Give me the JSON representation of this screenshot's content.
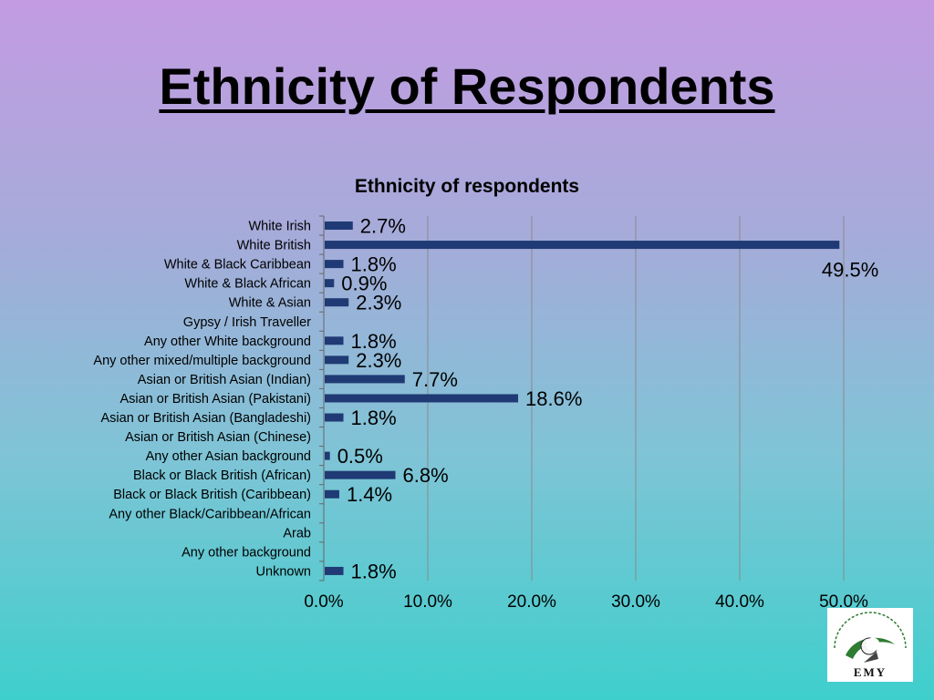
{
  "slide": {
    "title": "Ethnicity of Respondents"
  },
  "colors": {
    "bar": "#1f3a74",
    "grid": "#8a8a8a",
    "logo_green": "#2e7d32",
    "logo_dark": "#222222"
  },
  "logo": {
    "text": "EMY",
    "arc_text": "Empowering Muslim Youth"
  },
  "chart_data": {
    "type": "bar",
    "orientation": "horizontal",
    "title": "Ethnicity of respondents",
    "xlabel": "",
    "ylabel": "",
    "xlim": [
      0,
      50
    ],
    "x_ticks": [
      "0.0%",
      "10.0%",
      "20.0%",
      "30.0%",
      "40.0%",
      "50.0%"
    ],
    "grid": "vertical",
    "categories": [
      "White Irish",
      "White British",
      "White & Black Caribbean",
      "White & Black African",
      "White & Asian",
      "Gypsy / Irish Traveller",
      "Any other White background",
      "Any other mixed/multiple background",
      "Asian or British Asian (Indian)",
      "Asian or British Asian (Pakistani)",
      "Asian or British Asian (Bangladeshi)",
      "Asian or British Asian (Chinese)",
      "Any other Asian background",
      "Black or Black British (African)",
      "Black or Black British (Caribbean)",
      "Any other Black/Caribbean/African",
      "Arab",
      "Any other background",
      "Unknown"
    ],
    "values": [
      2.7,
      49.5,
      1.8,
      0.9,
      2.3,
      null,
      1.8,
      2.3,
      7.7,
      18.6,
      1.8,
      null,
      0.5,
      6.8,
      1.4,
      null,
      null,
      null,
      1.8
    ],
    "data_labels": [
      "2.7%",
      "49.5%",
      "1.8%",
      "0.9%",
      "2.3%",
      "",
      "1.8%",
      "2.3%",
      "7.7%",
      "18.6%",
      "1.8%",
      "",
      "0.5%",
      "6.8%",
      "1.4%",
      "",
      "",
      "",
      "1.8%"
    ]
  }
}
